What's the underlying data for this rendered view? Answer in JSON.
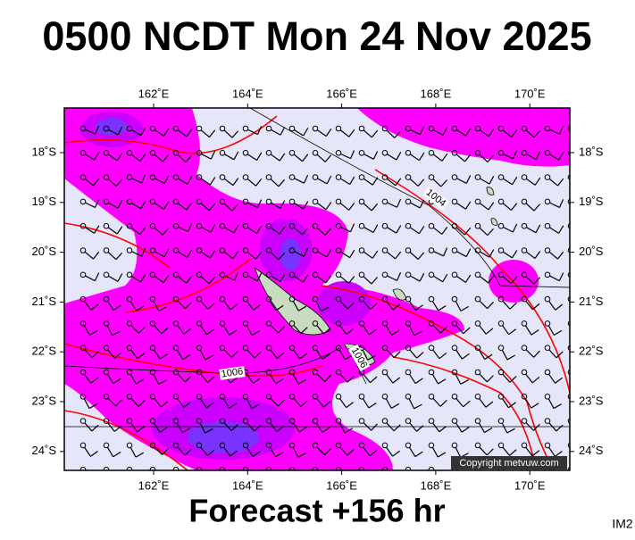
{
  "header": {
    "title": "0500 NCDT Mon 24 Nov 2025"
  },
  "map": {
    "lon_labels": [
      "162˚E",
      "164˚E",
      "166˚E",
      "168˚E",
      "170˚E"
    ],
    "lat_labels": [
      "18˚S",
      "19˚S",
      "20˚S",
      "21˚S",
      "22˚S",
      "23˚S",
      "24˚S"
    ],
    "isobar_labels": [
      "1004",
      "1006",
      "1006"
    ],
    "copyright": "Copyright metvuw.com"
  },
  "footer": {
    "forecast": "Forecast +156 hr",
    "image_id": "IM2"
  }
}
